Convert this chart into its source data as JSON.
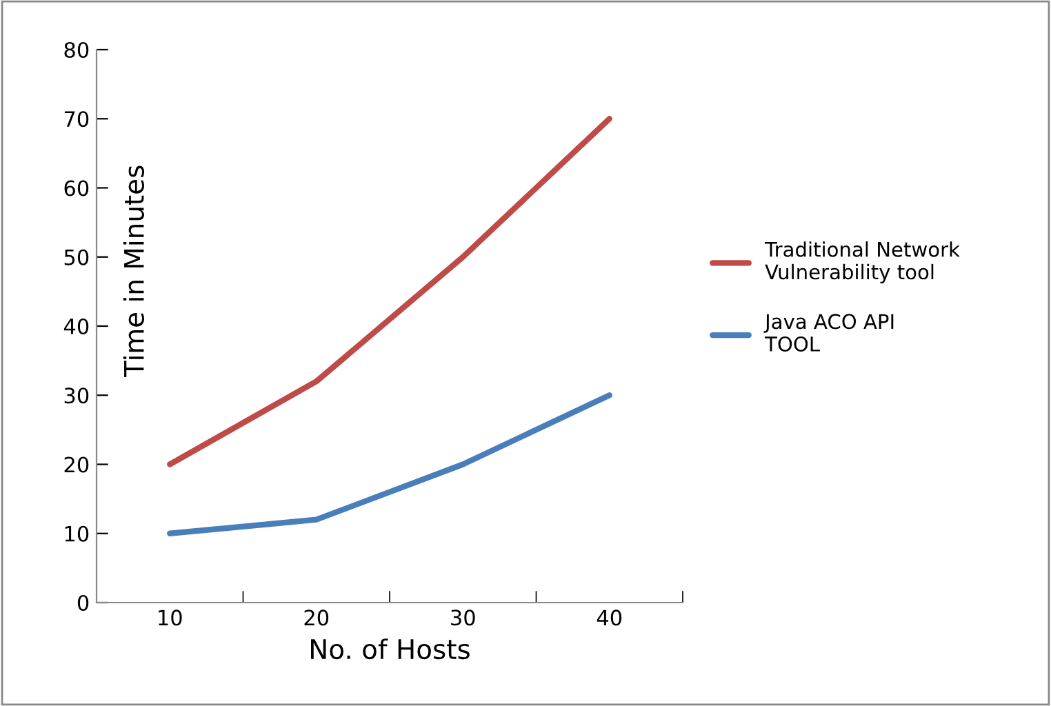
{
  "chart_data": {
    "type": "line",
    "xlabel": "No. of Hosts",
    "ylabel": "Time in Minutes",
    "categories": [
      "10",
      "20",
      "30",
      "40"
    ],
    "series": [
      {
        "name": "Traditional Network\nVulnerability tool",
        "color": "#be4b48",
        "values": [
          20,
          32,
          50,
          70
        ]
      },
      {
        "name": "Java ACO API\nTOOL",
        "color": "#4a7ebb",
        "values": [
          10,
          12,
          20,
          30
        ]
      }
    ],
    "ylim": [
      0,
      80
    ],
    "yticks": [
      0,
      10,
      20,
      30,
      40,
      50,
      60,
      70,
      80
    ],
    "grid": false,
    "legend": "right",
    "marker": "none",
    "line_style": "solid"
  }
}
